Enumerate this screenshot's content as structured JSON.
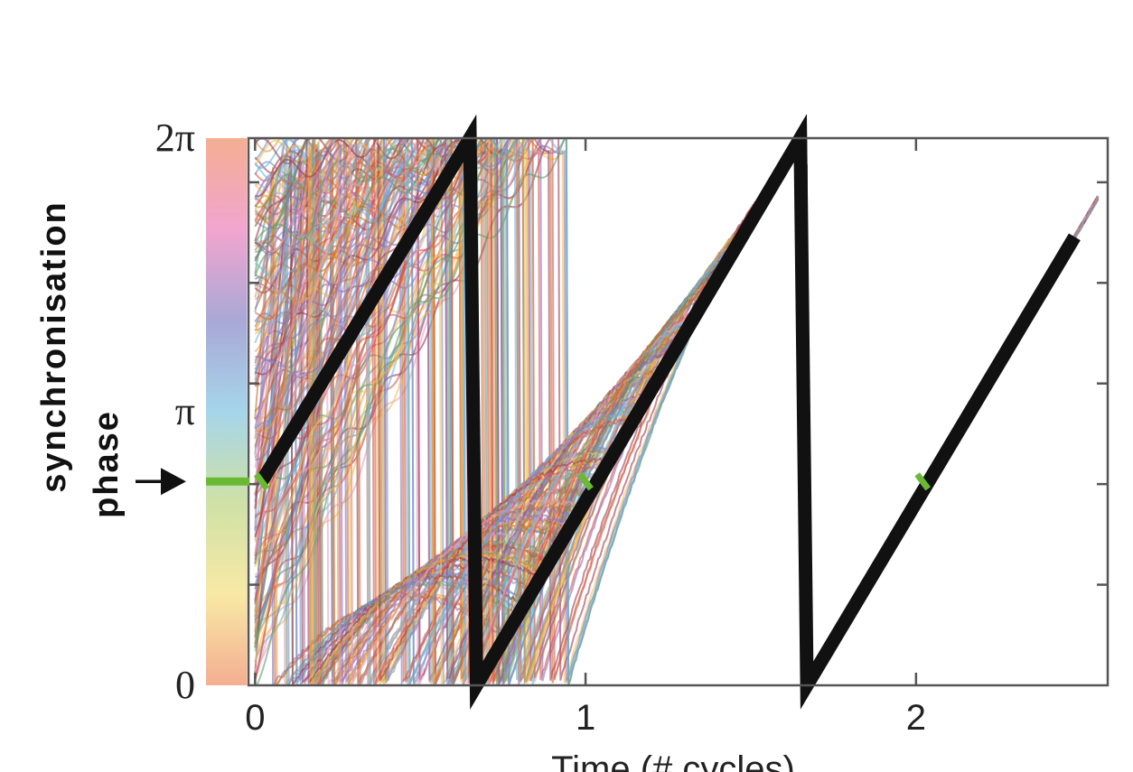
{
  "chart_data": {
    "type": "line",
    "title": "",
    "xlabel": "Time (# cycles)",
    "ylabel_lines": [
      "synchronisation",
      "phase"
    ],
    "xlim": [
      -0.02,
      2.58
    ],
    "ylim": [
      0,
      6.2832
    ],
    "xticks": [
      {
        "value": 0,
        "label": "0"
      },
      {
        "value": 1,
        "label": "1"
      },
      {
        "value": 2,
        "label": "2"
      }
    ],
    "yticks": [
      {
        "value": 0,
        "label": "0"
      },
      {
        "value": 3.1416,
        "label": "π"
      },
      {
        "value": 6.2832,
        "label": "2π"
      }
    ],
    "grid": false,
    "synchronisation_phase_marker": {
      "value": 2.34,
      "color": "#6ab934"
    },
    "colorbar_colors": [
      "#f4ae92",
      "#f8e9a5",
      "#cfe1a6",
      "#a6d5ea",
      "#a9a8d6",
      "#f2a5cf",
      "#f4ae92"
    ],
    "highlight_series": {
      "color": "#111111",
      "x": [
        0.02,
        0.65,
        0.67,
        1.65,
        1.67,
        2.48
      ],
      "y": [
        2.34,
        6.2832,
        0,
        6.2832,
        0,
        5.15
      ]
    },
    "phase_crossings": [
      0.02,
      1.0,
      2.02
    ],
    "ensemble_colors": [
      "#d9544f",
      "#e8974a",
      "#f2c14e",
      "#6fb7d8",
      "#8c6fb8",
      "#a03a55",
      "#5f9e6e",
      "#c8702f",
      "#e3a3c4",
      "#7a8fc9"
    ]
  }
}
